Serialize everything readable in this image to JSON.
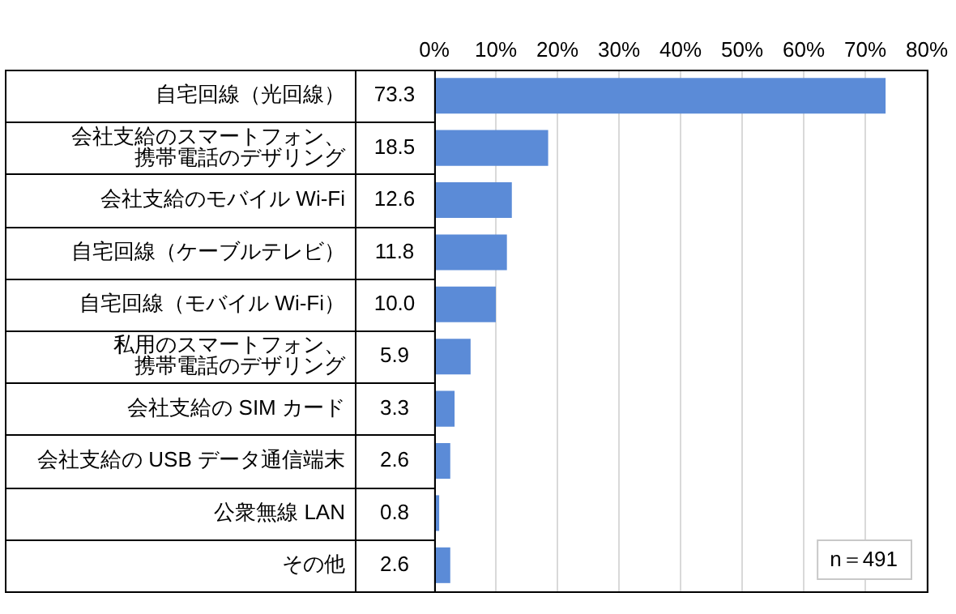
{
  "chart_data": {
    "type": "bar",
    "orientation": "horizontal",
    "categories": [
      "自宅回線（光回線）",
      "会社支給のスマートフォン、携帯電話のデザリング",
      "会社支給のモバイル Wi-Fi",
      "自宅回線（ケーブルテレビ）",
      "自宅回線（モバイル Wi-Fi）",
      "私用のスマートフォン、携帯電話のデザリング",
      "会社支給の SIM カード",
      "会社支給の USB データ通信端末",
      "公衆無線 LAN",
      "その他"
    ],
    "values": [
      73.3,
      18.5,
      12.6,
      11.8,
      10.0,
      5.9,
      3.3,
      2.6,
      0.8,
      2.6
    ],
    "value_labels": [
      "73.3",
      "18.5",
      "12.6",
      "11.8",
      "10.0",
      "5.9",
      "3.3",
      "2.6",
      "0.8",
      "2.6"
    ],
    "color": "#5b8bd7",
    "xlim": [
      0,
      80
    ],
    "xticks": [
      {
        "value": 0,
        "label": "0%"
      },
      {
        "value": 10,
        "label": "10%"
      },
      {
        "value": 20,
        "label": "20%"
      },
      {
        "value": 30,
        "label": "30%"
      },
      {
        "value": 40,
        "label": "40%"
      },
      {
        "value": 50,
        "label": "50%"
      },
      {
        "value": 60,
        "label": "60%"
      },
      {
        "value": 70,
        "label": "70%"
      },
      {
        "value": 80,
        "label": "80%"
      }
    ],
    "grid": "x",
    "annotations": [
      "n＝491"
    ]
  }
}
